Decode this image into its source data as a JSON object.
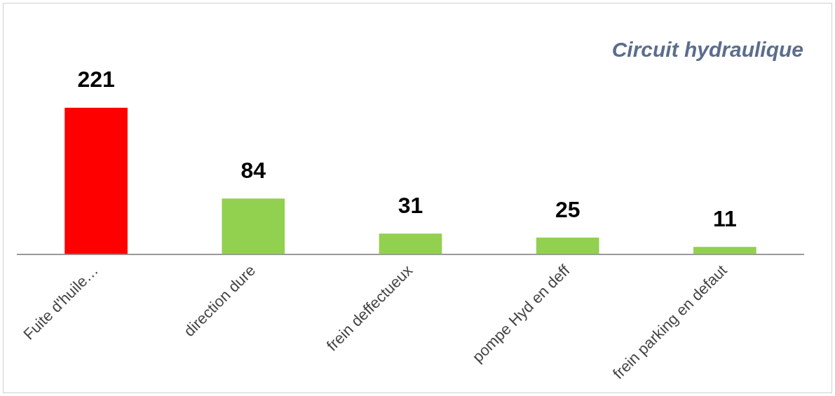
{
  "chart_data": {
    "type": "bar",
    "title": "Circuit hydraulique",
    "categories": [
      "Fuite d'huile…",
      "direction dure",
      "frein deffectueux",
      "pompe Hyd en deff",
      "frein parking en defaut"
    ],
    "values": [
      221,
      84,
      31,
      25,
      11
    ],
    "colors": [
      "#ff0000",
      "#92d050",
      "#92d050",
      "#92d050",
      "#92d050"
    ],
    "data_labels": true,
    "tick_labels": "x",
    "grid": false,
    "legend": false
  }
}
